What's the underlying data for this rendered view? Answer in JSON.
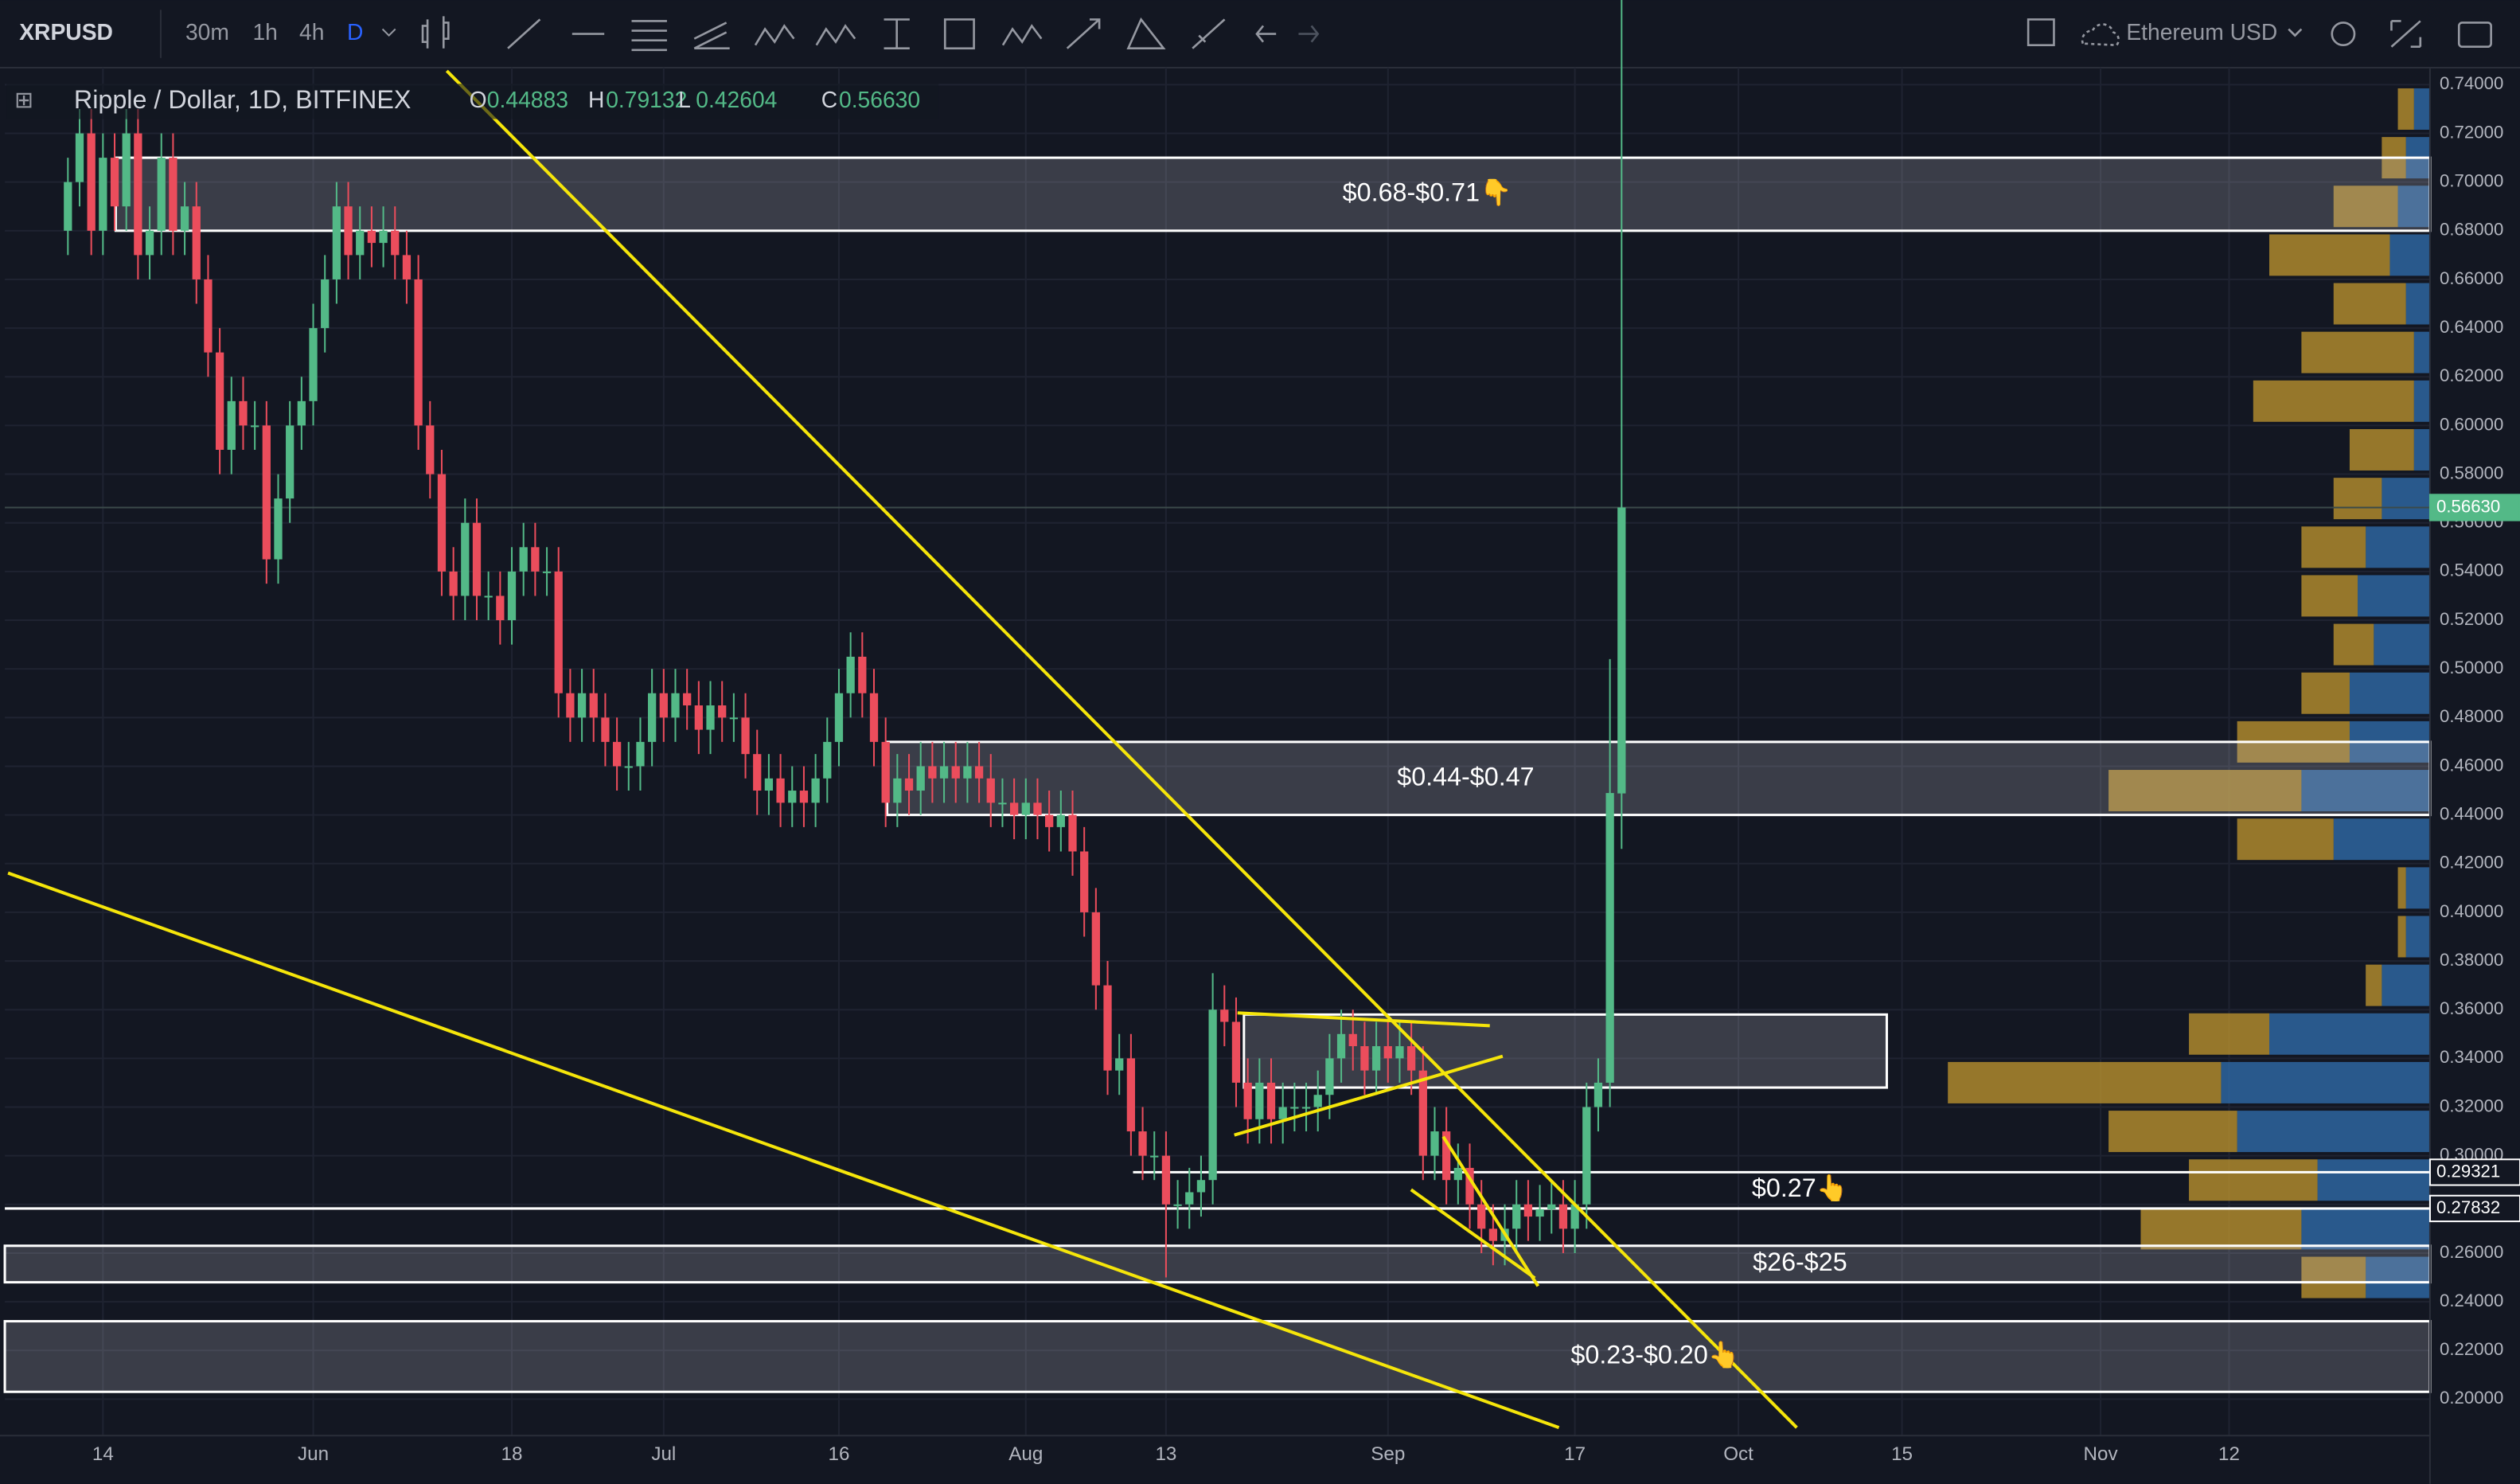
{
  "toolbar": {
    "symbol": "XRPUSD",
    "intervals": [
      "30m",
      "1h",
      "4h",
      "D"
    ],
    "compare": "Ethereum USD"
  },
  "chart_data": {
    "type": "candlestick",
    "title": "Ripple / Dollar, 1D, BITFINEX",
    "ohlc": [
      {
        "key": "O",
        "value": 0.44883
      },
      {
        "key": "H",
        "value": 0.79132
      },
      {
        "key": "L",
        "value": 0.42604
      },
      {
        "key": "C",
        "value": 0.5663,
        "label": "0.56630"
      }
    ],
    "up_color": "#53b987",
    "down_color": "#eb4d5c",
    "open": [
      0.68,
      0.7,
      0.72,
      0.68,
      0.71,
      0.69,
      0.72,
      0.67,
      0.68,
      0.71,
      0.68,
      0.69,
      0.66,
      0.63,
      0.59,
      0.61,
      0.6,
      0.6,
      0.545,
      0.57,
      0.6,
      0.61,
      0.64,
      0.66,
      0.69,
      0.67,
      0.68,
      0.675,
      0.68,
      0.67,
      0.66,
      0.6,
      0.58,
      0.54,
      0.53,
      0.56,
      0.53,
      0.53,
      0.52,
      0.54,
      0.55,
      0.54,
      0.54,
      0.49,
      0.48,
      0.49,
      0.48,
      0.47,
      0.46,
      0.46,
      0.47,
      0.49,
      0.48,
      0.49,
      0.485,
      0.475,
      0.485,
      0.48,
      0.48,
      0.465,
      0.45,
      0.455,
      0.445,
      0.45,
      0.445,
      0.455,
      0.47,
      0.49,
      0.505,
      0.49,
      0.47,
      0.445,
      0.455,
      0.45,
      0.46,
      0.455,
      0.46,
      0.455,
      0.46,
      0.455,
      0.445,
      0.445,
      0.44,
      0.445,
      0.44,
      0.435,
      0.44,
      0.425,
      0.4,
      0.37,
      0.335,
      0.34,
      0.31,
      0.3,
      0.3,
      0.28,
      0.28,
      0.285,
      0.29,
      0.36,
      0.355,
      0.33,
      0.315,
      0.33,
      0.315,
      0.32,
      0.32,
      0.32,
      0.325,
      0.34,
      0.35,
      0.345,
      0.335,
      0.345,
      0.34,
      0.345,
      0.335,
      0.3,
      0.31,
      0.29,
      0.295,
      0.28,
      0.27,
      0.265,
      0.27,
      0.28,
      0.275,
      0.278,
      0.28,
      0.27,
      0.28,
      0.32,
      0.33,
      0.44883
    ],
    "high": [
      0.71,
      0.73,
      0.73,
      0.72,
      0.72,
      0.73,
      0.73,
      0.69,
      0.72,
      0.72,
      0.7,
      0.7,
      0.67,
      0.64,
      0.62,
      0.62,
      0.61,
      0.61,
      0.58,
      0.61,
      0.62,
      0.65,
      0.67,
      0.7,
      0.7,
      0.69,
      0.69,
      0.69,
      0.69,
      0.68,
      0.67,
      0.61,
      0.59,
      0.55,
      0.57,
      0.57,
      0.54,
      0.54,
      0.55,
      0.56,
      0.56,
      0.55,
      0.55,
      0.5,
      0.5,
      0.5,
      0.49,
      0.48,
      0.47,
      0.48,
      0.5,
      0.5,
      0.5,
      0.5,
      0.495,
      0.495,
      0.495,
      0.49,
      0.49,
      0.475,
      0.465,
      0.465,
      0.46,
      0.46,
      0.465,
      0.48,
      0.5,
      0.515,
      0.515,
      0.5,
      0.48,
      0.465,
      0.465,
      0.47,
      0.47,
      0.47,
      0.47,
      0.47,
      0.47,
      0.465,
      0.455,
      0.455,
      0.455,
      0.455,
      0.45,
      0.45,
      0.45,
      0.435,
      0.41,
      0.38,
      0.35,
      0.35,
      0.32,
      0.31,
      0.31,
      0.29,
      0.295,
      0.3,
      0.375,
      0.37,
      0.365,
      0.34,
      0.34,
      0.34,
      0.33,
      0.33,
      0.33,
      0.335,
      0.35,
      0.36,
      0.36,
      0.355,
      0.355,
      0.355,
      0.355,
      0.355,
      0.345,
      0.32,
      0.32,
      0.305,
      0.305,
      0.29,
      0.28,
      0.28,
      0.29,
      0.29,
      0.288,
      0.29,
      0.29,
      0.29,
      0.33,
      0.34,
      0.504,
      0.79132
    ],
    "low": [
      0.67,
      0.69,
      0.67,
      0.67,
      0.68,
      0.68,
      0.66,
      0.66,
      0.67,
      0.67,
      0.67,
      0.65,
      0.62,
      0.58,
      0.58,
      0.59,
      0.59,
      0.535,
      0.535,
      0.56,
      0.59,
      0.6,
      0.63,
      0.65,
      0.66,
      0.66,
      0.665,
      0.665,
      0.66,
      0.65,
      0.59,
      0.57,
      0.53,
      0.52,
      0.52,
      0.52,
      0.52,
      0.51,
      0.51,
      0.53,
      0.53,
      0.53,
      0.48,
      0.47,
      0.47,
      0.47,
      0.46,
      0.45,
      0.45,
      0.45,
      0.46,
      0.47,
      0.47,
      0.475,
      0.465,
      0.465,
      0.47,
      0.47,
      0.455,
      0.44,
      0.44,
      0.435,
      0.435,
      0.435,
      0.435,
      0.445,
      0.46,
      0.48,
      0.48,
      0.46,
      0.435,
      0.435,
      0.44,
      0.44,
      0.445,
      0.445,
      0.445,
      0.445,
      0.445,
      0.435,
      0.435,
      0.43,
      0.43,
      0.43,
      0.425,
      0.425,
      0.415,
      0.39,
      0.36,
      0.325,
      0.325,
      0.3,
      0.29,
      0.29,
      0.25,
      0.27,
      0.27,
      0.275,
      0.28,
      0.345,
      0.32,
      0.305,
      0.305,
      0.305,
      0.305,
      0.31,
      0.31,
      0.31,
      0.315,
      0.33,
      0.335,
      0.325,
      0.325,
      0.33,
      0.33,
      0.325,
      0.29,
      0.29,
      0.28,
      0.28,
      0.27,
      0.26,
      0.255,
      0.255,
      0.26,
      0.265,
      0.265,
      0.268,
      0.26,
      0.26,
      0.27,
      0.31,
      0.32,
      0.42604
    ],
    "close": [
      0.7,
      0.72,
      0.68,
      0.71,
      0.69,
      0.72,
      0.67,
      0.68,
      0.71,
      0.68,
      0.69,
      0.66,
      0.63,
      0.59,
      0.61,
      0.6,
      0.6,
      0.545,
      0.57,
      0.6,
      0.61,
      0.64,
      0.66,
      0.69,
      0.67,
      0.68,
      0.675,
      0.68,
      0.67,
      0.66,
      0.6,
      0.58,
      0.54,
      0.53,
      0.56,
      0.53,
      0.53,
      0.52,
      0.54,
      0.55,
      0.54,
      0.54,
      0.49,
      0.48,
      0.49,
      0.48,
      0.47,
      0.46,
      0.46,
      0.47,
      0.49,
      0.48,
      0.49,
      0.485,
      0.475,
      0.485,
      0.48,
      0.48,
      0.465,
      0.45,
      0.455,
      0.445,
      0.45,
      0.445,
      0.455,
      0.47,
      0.49,
      0.505,
      0.49,
      0.47,
      0.445,
      0.455,
      0.45,
      0.46,
      0.455,
      0.46,
      0.455,
      0.46,
      0.455,
      0.445,
      0.445,
      0.44,
      0.445,
      0.44,
      0.435,
      0.44,
      0.425,
      0.4,
      0.37,
      0.335,
      0.34,
      0.31,
      0.3,
      0.3,
      0.28,
      0.28,
      0.285,
      0.29,
      0.36,
      0.355,
      0.33,
      0.315,
      0.33,
      0.315,
      0.32,
      0.32,
      0.32,
      0.325,
      0.34,
      0.35,
      0.345,
      0.335,
      0.345,
      0.34,
      0.345,
      0.335,
      0.3,
      0.31,
      0.29,
      0.295,
      0.28,
      0.27,
      0.265,
      0.27,
      0.28,
      0.275,
      0.278,
      0.28,
      0.27,
      0.28,
      0.32,
      0.33,
      0.449,
      0.5663
    ],
    "xlim": [
      -5.4,
      202.2
    ],
    "ylim": [
      0.185,
      0.747
    ],
    "xticks": [
      {
        "value": 3,
        "label": "14"
      },
      {
        "value": 21,
        "label": "Jun"
      },
      {
        "value": 38,
        "label": "18"
      },
      {
        "value": 51,
        "label": "Jul"
      },
      {
        "value": 66,
        "label": "16"
      },
      {
        "value": 82,
        "label": "Aug"
      },
      {
        "value": 94,
        "label": "13"
      },
      {
        "value": 113,
        "label": "Sep"
      },
      {
        "value": 129,
        "label": "17"
      },
      {
        "value": 143,
        "label": "Oct"
      },
      {
        "value": 157,
        "label": "15"
      },
      {
        "value": 174,
        "label": "Nov"
      },
      {
        "value": 185,
        "label": "12"
      }
    ],
    "yticks": [
      {
        "value": 0.2,
        "label": "0.20000"
      },
      {
        "value": 0.22,
        "label": "0.22000"
      },
      {
        "value": 0.24,
        "label": "0.24000"
      },
      {
        "value": 0.26,
        "label": "0.26000"
      },
      {
        "value": 0.28,
        "label": "0.28000"
      },
      {
        "value": 0.3,
        "label": "0.30000"
      },
      {
        "value": 0.32,
        "label": "0.32000"
      },
      {
        "value": 0.34,
        "label": "0.34000"
      },
      {
        "value": 0.36,
        "label": "0.36000"
      },
      {
        "value": 0.38,
        "label": "0.38000"
      },
      {
        "value": 0.4,
        "label": "0.40000"
      },
      {
        "value": 0.42,
        "label": "0.42000"
      },
      {
        "value": 0.44,
        "label": "0.44000"
      },
      {
        "value": 0.46,
        "label": "0.46000"
      },
      {
        "value": 0.48,
        "label": "0.48000"
      },
      {
        "value": 0.5,
        "label": "0.50000"
      },
      {
        "value": 0.52,
        "label": "0.52000"
      },
      {
        "value": 0.54,
        "label": "0.54000"
      },
      {
        "value": 0.56,
        "label": "0.56000"
      },
      {
        "value": 0.58,
        "label": "0.58000"
      },
      {
        "value": 0.6,
        "label": "0.60000"
      },
      {
        "value": 0.62,
        "label": "0.62000"
      },
      {
        "value": 0.64,
        "label": "0.64000"
      },
      {
        "value": 0.66,
        "label": "0.66000"
      },
      {
        "value": 0.68,
        "label": "0.68000"
      },
      {
        "value": 0.7,
        "label": "0.70000"
      },
      {
        "value": 0.72,
        "label": "0.72000"
      },
      {
        "value": 0.74,
        "label": "0.74000"
      }
    ],
    "grid": true,
    "price_markers": [
      {
        "value": 0.5663,
        "label": "0.56630",
        "color": "#53b987"
      },
      {
        "value": 0.29321,
        "label": "0.29321",
        "color": "#ffffff"
      },
      {
        "value": 0.27832,
        "label": "0.27832",
        "color": "#ffffff"
      }
    ],
    "zones": [
      {
        "label": "$0.68-$0.71👇",
        "range": [
          0.68,
          0.71
        ]
      },
      {
        "label": "$0.44-$0.47",
        "range": [
          0.44,
          0.47
        ]
      },
      {
        "range": [
          0.328,
          0.358
        ]
      },
      {
        "label": "$26-$25",
        "range": [
          0.248,
          0.263
        ]
      },
      {
        "label": "$0.23-$0.20👆",
        "range": [
          0.203,
          0.232
        ]
      }
    ],
    "annotations": [
      "$0.27👆"
    ],
    "volume_profile": {
      "price": [
        0.25,
        0.27,
        0.29,
        0.31,
        0.33,
        0.35,
        0.37,
        0.39,
        0.41,
        0.43,
        0.45,
        0.47,
        0.49,
        0.51,
        0.53,
        0.55,
        0.57,
        0.59,
        0.61,
        0.63,
        0.65,
        0.67,
        0.69,
        0.71,
        0.73
      ],
      "up": [
        40,
        80,
        70,
        120,
        130,
        100,
        30,
        15,
        15,
        60,
        80,
        50,
        50,
        35,
        45,
        40,
        30,
        10,
        10,
        10,
        15,
        25,
        20,
        15,
        10
      ],
      "down": [
        40,
        100,
        80,
        80,
        170,
        50,
        10,
        5,
        5,
        60,
        120,
        70,
        30,
        25,
        35,
        40,
        30,
        40,
        100,
        70,
        45,
        75,
        40,
        15,
        10
      ],
      "up_color": "#2f6aa8",
      "down_color": "#b8902e"
    }
  }
}
